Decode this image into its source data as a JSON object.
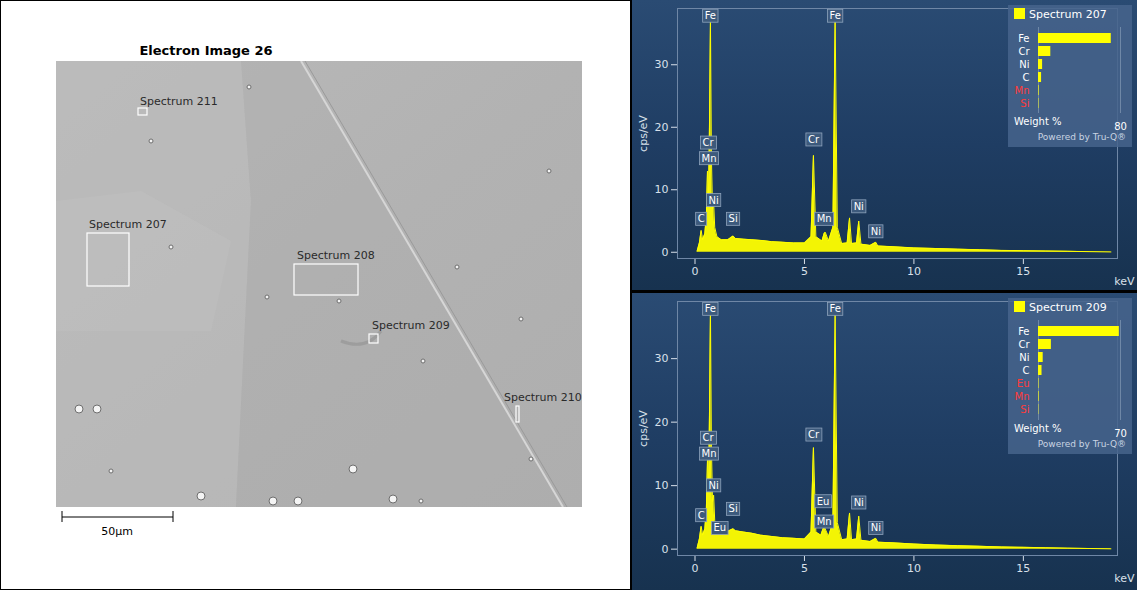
{
  "electron_image": {
    "title": "Electron Image 26",
    "scale_bar": "50µm",
    "regions": [
      "Spectrum 211",
      "Spectrum 207",
      "Spectrum 208",
      "Spectrum 209",
      "Spectrum 210"
    ]
  },
  "chart_data": [
    {
      "type": "area",
      "x_label": "keV",
      "y_label": "cps/eV",
      "color": "#ffff00",
      "xlim": [
        -0.8,
        19.3
      ],
      "xticks": [
        0,
        5,
        10,
        15
      ],
      "ylim": [
        -1,
        39
      ],
      "yticks": [
        0,
        10,
        20,
        30
      ],
      "series": [
        {
          "name": "Spectrum 207",
          "color": "#ffff00",
          "x": [
            0.1,
            0.2,
            0.28,
            0.35,
            0.45,
            0.52,
            0.57,
            0.62,
            0.66,
            0.705,
            0.75,
            0.8,
            0.85,
            0.9,
            1.0,
            1.2,
            1.5,
            1.74,
            1.85,
            2.2,
            2.6,
            3.0,
            3.5,
            4.0,
            4.5,
            5.0,
            5.3,
            5.41,
            5.52,
            5.8,
            5.9,
            5.95,
            6.1,
            6.3,
            6.4,
            6.5,
            6.7,
            6.95,
            7.06,
            7.15,
            7.38,
            7.48,
            7.58,
            8.0,
            8.26,
            8.35,
            9.0,
            10.0,
            11.0,
            12.0,
            13.0,
            14.0,
            15.0,
            16.0,
            17.0,
            18.0,
            19.0
          ],
          "values": [
            0.2,
            1.5,
            3.5,
            2.0,
            3.0,
            6.0,
            13.0,
            9.0,
            20.0,
            37.0,
            15.0,
            7.0,
            8.0,
            4.0,
            2.5,
            2.0,
            2.0,
            2.6,
            2.2,
            2.1,
            2.0,
            1.9,
            1.7,
            1.6,
            1.5,
            1.5,
            2.5,
            15.5,
            2.5,
            1.8,
            3.0,
            3.2,
            1.8,
            4.0,
            37.5,
            4.0,
            1.4,
            1.5,
            5.5,
            1.4,
            1.5,
            5.0,
            1.3,
            1.1,
            1.6,
            1.0,
            0.9,
            0.7,
            0.6,
            0.5,
            0.4,
            0.3,
            0.25,
            0.2,
            0.15,
            0.1,
            0.05
          ]
        }
      ],
      "peak_labels": [
        {
          "text": "Fe",
          "x": 0.7,
          "y": 37.8
        },
        {
          "text": "Cr",
          "x": 0.6,
          "y": 17.5
        },
        {
          "text": "Mn",
          "x": 0.64,
          "y": 15.0
        },
        {
          "text": "Ni",
          "x": 0.85,
          "y": 8.3
        },
        {
          "text": "C",
          "x": 0.28,
          "y": 5.3
        },
        {
          "text": "Si",
          "x": 1.74,
          "y": 5.3
        },
        {
          "text": "Cr",
          "x": 5.41,
          "y": 18.0
        },
        {
          "text": "Mn",
          "x": 5.9,
          "y": 5.3
        },
        {
          "text": "Fe",
          "x": 6.4,
          "y": 37.8
        },
        {
          "text": "Ni",
          "x": 7.48,
          "y": 7.3
        },
        {
          "text": "Ni",
          "x": 8.26,
          "y": 3.3
        }
      ],
      "composition": {
        "type": "bar",
        "orientation": "horizontal",
        "label": "Weight %",
        "footer": "Powered by Tru-Q®",
        "categories": [
          "Fe",
          "Cr",
          "Ni",
          "C",
          "Mn",
          "Si"
        ],
        "values": [
          71,
          12,
          4,
          3,
          0.6,
          0.4
        ],
        "colors": [
          "#ffffff",
          "#ffffff",
          "#ffffff",
          "#ffffff",
          "#ff3b3b",
          "#ff3b3b"
        ],
        "color": "#ffff00",
        "xlim": [
          0,
          80
        ],
        "xticks": [
          80
        ]
      }
    },
    {
      "type": "area",
      "x_label": "keV",
      "y_label": "cps/eV",
      "color": "#ffff00",
      "xlim": [
        -0.8,
        19.3
      ],
      "xticks": [
        0,
        5,
        10,
        15
      ],
      "ylim": [
        -1,
        39
      ],
      "yticks": [
        0,
        10,
        20,
        30
      ],
      "series": [
        {
          "name": "Spectrum 209",
          "color": "#ffff00",
          "x": [
            0.1,
            0.2,
            0.28,
            0.35,
            0.45,
            0.52,
            0.57,
            0.62,
            0.66,
            0.705,
            0.75,
            0.8,
            0.85,
            0.9,
            1.0,
            1.13,
            1.3,
            1.5,
            1.74,
            1.85,
            2.2,
            2.6,
            3.0,
            3.5,
            4.0,
            4.5,
            5.0,
            5.3,
            5.41,
            5.52,
            5.75,
            5.85,
            5.92,
            6.1,
            6.3,
            6.4,
            6.5,
            6.7,
            6.95,
            7.06,
            7.15,
            7.38,
            7.48,
            7.58,
            8.0,
            8.26,
            8.35,
            9.0,
            10.0,
            11.0,
            12.0,
            13.0,
            14.0,
            15.0,
            16.0,
            17.0,
            18.0,
            19.0
          ],
          "values": [
            0.2,
            1.6,
            3.6,
            2.2,
            3.2,
            6.5,
            14.0,
            9.5,
            21.0,
            37.5,
            16.0,
            7.5,
            8.5,
            4.5,
            3.0,
            3.0,
            2.7,
            2.8,
            3.2,
            2.9,
            2.7,
            2.5,
            2.2,
            2.0,
            1.8,
            1.7,
            1.6,
            2.7,
            16.0,
            2.7,
            2.2,
            3.2,
            3.4,
            2.0,
            4.2,
            37.0,
            4.2,
            1.5,
            1.6,
            5.7,
            1.5,
            1.6,
            5.2,
            1.4,
            1.2,
            1.7,
            1.1,
            1.0,
            0.8,
            0.65,
            0.55,
            0.45,
            0.35,
            0.28,
            0.22,
            0.16,
            0.1,
            0.05
          ]
        }
      ],
      "peak_labels": [
        {
          "text": "Fe",
          "x": 0.7,
          "y": 37.8
        },
        {
          "text": "Cr",
          "x": 0.6,
          "y": 17.5
        },
        {
          "text": "Mn",
          "x": 0.64,
          "y": 15.0
        },
        {
          "text": "Ni",
          "x": 0.85,
          "y": 10.0
        },
        {
          "text": "C",
          "x": 0.28,
          "y": 5.3
        },
        {
          "text": "Eu",
          "x": 1.13,
          "y": 3.3
        },
        {
          "text": "Si",
          "x": 1.74,
          "y": 6.3
        },
        {
          "text": "Eu",
          "x": 5.85,
          "y": 7.5
        },
        {
          "text": "Cr",
          "x": 5.41,
          "y": 18.0
        },
        {
          "text": "Mn",
          "x": 5.9,
          "y": 4.3
        },
        {
          "text": "Fe",
          "x": 6.4,
          "y": 37.8
        },
        {
          "text": "Ni",
          "x": 7.48,
          "y": 7.3
        },
        {
          "text": "Ni",
          "x": 8.26,
          "y": 3.3
        }
      ],
      "composition": {
        "type": "bar",
        "orientation": "horizontal",
        "label": "Weight %",
        "footer": "Powered by Tru-Q®",
        "categories": [
          "Fe",
          "Cr",
          "Ni",
          "C",
          "Eu",
          "Mn",
          "Si"
        ],
        "values": [
          69,
          11,
          4,
          3,
          0.4,
          0.5,
          0.3
        ],
        "colors": [
          "#ffffff",
          "#ffffff",
          "#ffffff",
          "#ffffff",
          "#ff3b3b",
          "#ff3b3b",
          "#ff3b3b"
        ],
        "color": "#ffff00",
        "xlim": [
          0,
          70
        ],
        "xticks": [
          70
        ]
      }
    }
  ]
}
